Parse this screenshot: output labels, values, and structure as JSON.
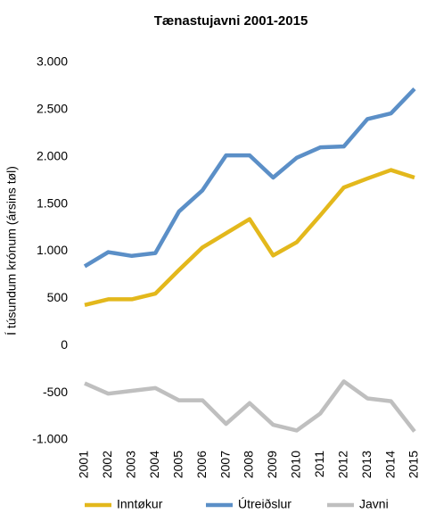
{
  "chart_data": {
    "type": "line",
    "title": "Tænastujavni 2001-2015",
    "y_label": "Í túsundum krónum (ársins tøl)",
    "categories": [
      "2001",
      "2002",
      "2003",
      "2004",
      "2005",
      "2006",
      "2007",
      "2008",
      "2009",
      "2010",
      "2011",
      "2012",
      "2013",
      "2014",
      "2015"
    ],
    "series": [
      {
        "name": "Inntøkur",
        "color": "#e3b81c",
        "values": [
          430,
          490,
          490,
          550,
          800,
          1040,
          1190,
          1340,
          955,
          1095,
          1380,
          1675,
          1770,
          1860,
          1780
        ]
      },
      {
        "name": "Útreiðslur",
        "color": "#5b8fc7",
        "values": [
          840,
          990,
          950,
          980,
          1420,
          1645,
          2015,
          2015,
          1780,
          1990,
          2100,
          2110,
          2400,
          2460,
          2720
        ]
      },
      {
        "name": "Javni",
        "color": "#bfbfbf",
        "values": [
          -400,
          -510,
          -480,
          -450,
          -580,
          -580,
          -830,
          -610,
          -840,
          -900,
          -720,
          -380,
          -560,
          -590,
          -910
        ]
      }
    ],
    "ylim": [
      -1000,
      3000
    ],
    "yticks": [
      {
        "value": 3000,
        "label": "3.000"
      },
      {
        "value": 2500,
        "label": "2.500"
      },
      {
        "value": 2000,
        "label": "2.000"
      },
      {
        "value": 1500,
        "label": "1.500"
      },
      {
        "value": 1000,
        "label": "1.000"
      },
      500,
      0,
      -500,
      {
        "value": -1000,
        "label": "-1.000"
      }
    ],
    "grid": false,
    "legend": "bottom"
  }
}
